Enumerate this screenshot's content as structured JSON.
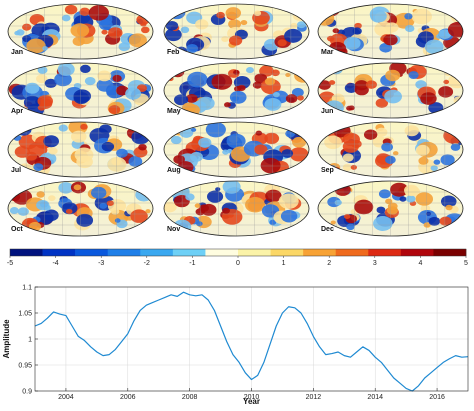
{
  "maps": {
    "months": [
      "Jan",
      "Feb",
      "Mar",
      "Apr",
      "May",
      "Jun",
      "Jul",
      "Aug",
      "Sep",
      "Oct",
      "Nov",
      "Dec"
    ]
  },
  "colorbar": {
    "ticks": [
      "-5",
      "-4",
      "-3",
      "-2",
      "-1",
      "0",
      "1",
      "2",
      "3",
      "4",
      "5"
    ],
    "colors": [
      "#00127e",
      "#0033c4",
      "#0a58dd",
      "#1f7fe8",
      "#3aa8f0",
      "#6ed0f6",
      "#fffde0",
      "#fbf3a8",
      "#fbd766",
      "#f7a235",
      "#ef6a1d",
      "#dd2a13",
      "#b0050c",
      "#7a0000"
    ]
  },
  "chart_data": {
    "type": "line",
    "title": "",
    "xlabel": "Year",
    "ylabel": "Amplitude",
    "xlim": [
      2003.0,
      2017.0
    ],
    "ylim": [
      0.9,
      1.1
    ],
    "xticks": [
      2004,
      2006,
      2008,
      2010,
      2012,
      2014,
      2016
    ],
    "yticks": [
      0.9,
      0.95,
      1.0,
      1.05,
      1.1
    ],
    "xtick_labels": [
      "2004",
      "2006",
      "2008",
      "2010",
      "2012",
      "2014",
      "2016"
    ],
    "ytick_labels": [
      "0.9",
      "0.95",
      "1",
      "1.05",
      "1.1"
    ],
    "grid": true,
    "line_color": "#1f8ad2",
    "series": [
      {
        "x": [
          2003.0,
          2003.2,
          2003.4,
          2003.6,
          2003.8,
          2004.0,
          2004.2,
          2004.4,
          2004.6,
          2004.8,
          2005.0,
          2005.2,
          2005.4,
          2005.6,
          2005.8,
          2006.0,
          2006.2,
          2006.4,
          2006.6,
          2006.8,
          2007.0,
          2007.2,
          2007.4,
          2007.6,
          2007.8,
          2008.0,
          2008.2,
          2008.4,
          2008.6,
          2008.8,
          2009.0,
          2009.2,
          2009.4,
          2009.6,
          2009.8,
          2010.0,
          2010.2,
          2010.4,
          2010.6,
          2010.8,
          2011.0,
          2011.2,
          2011.4,
          2011.6,
          2011.8,
          2012.0,
          2012.2,
          2012.4,
          2012.6,
          2012.8,
          2013.0,
          2013.2,
          2013.4,
          2013.6,
          2013.8,
          2014.0,
          2014.2,
          2014.4,
          2014.6,
          2014.8,
          2015.0,
          2015.2,
          2015.4,
          2015.6,
          2015.8,
          2016.0,
          2016.2,
          2016.4,
          2016.6,
          2016.8,
          2017.0
        ],
        "y": [
          1.025,
          1.03,
          1.04,
          1.052,
          1.048,
          1.045,
          1.025,
          1.005,
          0.997,
          0.985,
          0.975,
          0.968,
          0.97,
          0.98,
          0.995,
          1.01,
          1.035,
          1.055,
          1.065,
          1.07,
          1.075,
          1.08,
          1.085,
          1.082,
          1.09,
          1.085,
          1.083,
          1.085,
          1.075,
          1.055,
          1.025,
          0.995,
          0.97,
          0.955,
          0.935,
          0.922,
          0.93,
          0.955,
          0.99,
          1.025,
          1.05,
          1.062,
          1.06,
          1.05,
          1.03,
          1.005,
          0.985,
          0.97,
          0.972,
          0.975,
          0.968,
          0.965,
          0.975,
          0.985,
          0.978,
          0.965,
          0.955,
          0.94,
          0.925,
          0.915,
          0.905,
          0.9,
          0.91,
          0.925,
          0.935,
          0.945,
          0.955,
          0.962,
          0.968,
          0.965,
          0.966
        ]
      }
    ]
  }
}
